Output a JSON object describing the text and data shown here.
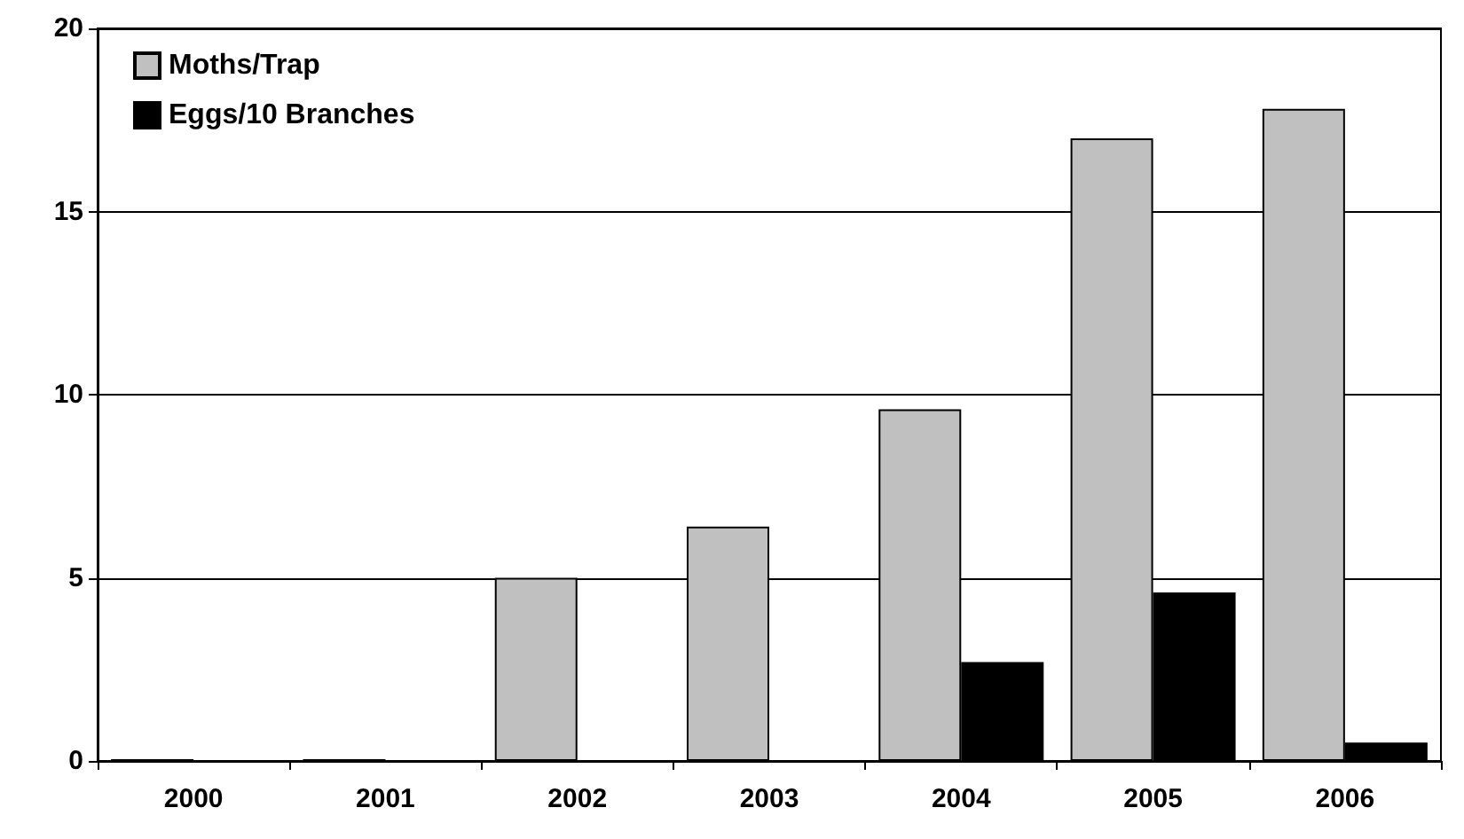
{
  "chart_data": {
    "type": "bar",
    "categories": [
      "2000",
      "2001",
      "2002",
      "2003",
      "2004",
      "2005",
      "2006"
    ],
    "series": [
      {
        "name": "Moths/Trap",
        "color": "#c0c0c0",
        "values": [
          0.05,
          0.05,
          5.0,
          6.4,
          9.6,
          17.0,
          17.8
        ]
      },
      {
        "name": "Eggs/10 Branches",
        "color": "#000000",
        "values": [
          0,
          0,
          0,
          0,
          2.7,
          4.6,
          0.5
        ]
      }
    ],
    "ylim": [
      0,
      20
    ],
    "yticks": [
      0,
      5,
      10,
      15,
      20
    ],
    "grid": "y",
    "legend": "top left"
  }
}
